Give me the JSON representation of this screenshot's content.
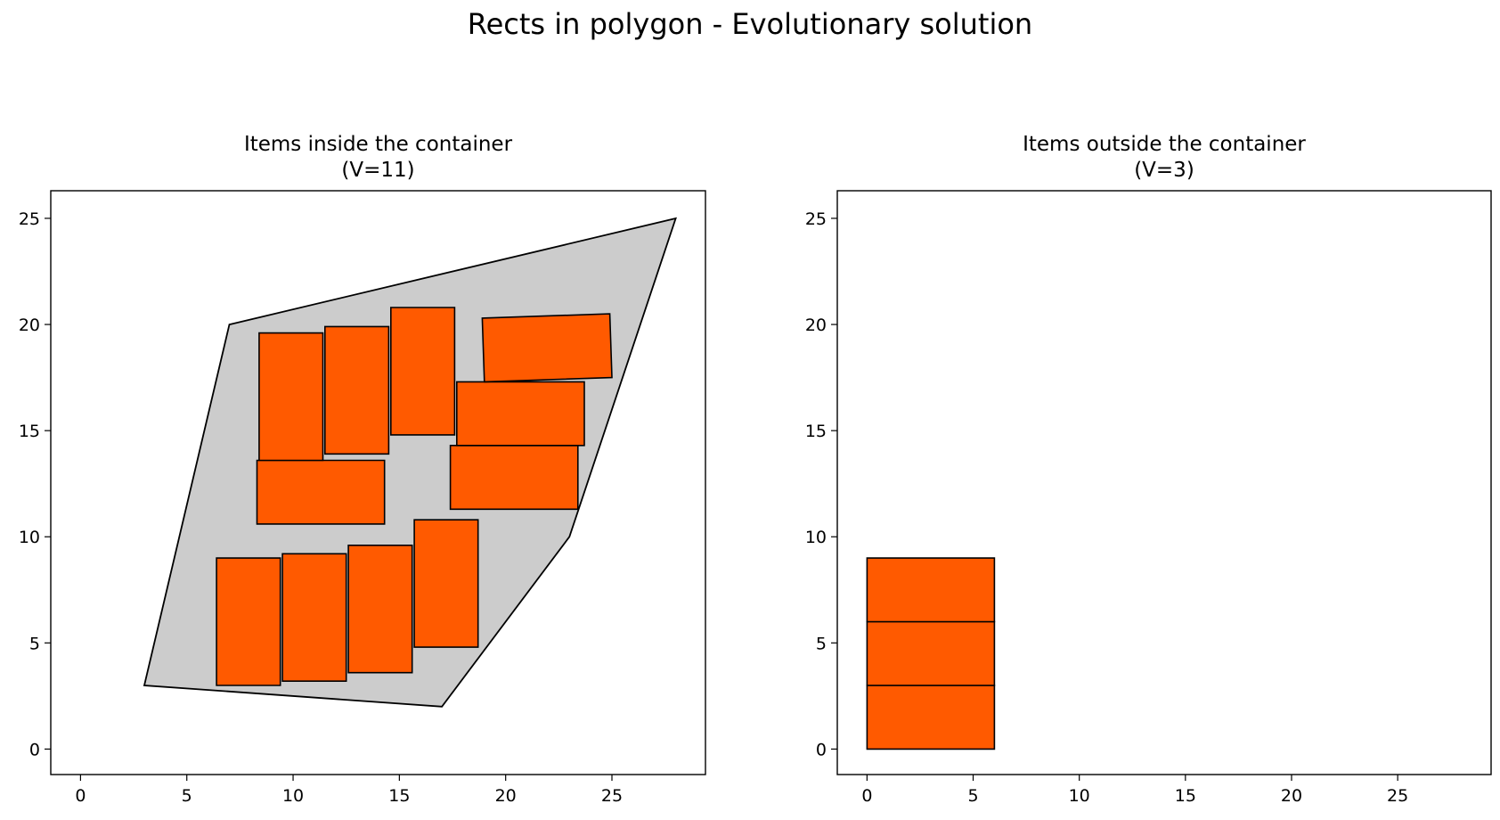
{
  "suptitle": "Rects in polygon - Evolutionary solution",
  "colors": {
    "item_fill": "#ff5a00",
    "item_edge": "#000000",
    "container_fill": "#cccccc",
    "container_edge": "#000000"
  },
  "chart_data": [
    {
      "type": "polygon-packing",
      "title_line1": "Items inside the container",
      "title_line2": "(V=11)",
      "xlim": [
        -1.4,
        29.4
      ],
      "ylim": [
        -1.2,
        26.3
      ],
      "xticks": [
        0,
        5,
        10,
        15,
        20,
        25
      ],
      "yticks": [
        0,
        5,
        10,
        15,
        20,
        25
      ],
      "container": [
        [
          3,
          3
        ],
        [
          7,
          20
        ],
        [
          28,
          25
        ],
        [
          23,
          10
        ],
        [
          17,
          2
        ]
      ],
      "items": [
        {
          "corners": [
            [
              6.4,
              3.0
            ],
            [
              9.4,
              3.0
            ],
            [
              9.4,
              9.0
            ],
            [
              6.4,
              9.0
            ]
          ]
        },
        {
          "corners": [
            [
              9.5,
              3.2
            ],
            [
              12.5,
              3.2
            ],
            [
              12.5,
              9.2
            ],
            [
              9.5,
              9.2
            ]
          ]
        },
        {
          "corners": [
            [
              12.6,
              3.6
            ],
            [
              15.6,
              3.6
            ],
            [
              15.6,
              9.6
            ],
            [
              12.6,
              9.6
            ]
          ]
        },
        {
          "corners": [
            [
              15.7,
              4.8
            ],
            [
              18.7,
              4.8
            ],
            [
              18.7,
              10.8
            ],
            [
              15.7,
              10.8
            ]
          ]
        },
        {
          "corners": [
            [
              8.3,
              10.6
            ],
            [
              14.3,
              10.6
            ],
            [
              14.3,
              13.6
            ],
            [
              8.3,
              13.6
            ]
          ]
        },
        {
          "corners": [
            [
              8.4,
              13.6
            ],
            [
              11.4,
              13.6
            ],
            [
              11.4,
              19.6
            ],
            [
              8.4,
              19.6
            ]
          ]
        },
        {
          "corners": [
            [
              11.5,
              13.9
            ],
            [
              14.5,
              13.9
            ],
            [
              14.5,
              19.9
            ],
            [
              11.5,
              19.9
            ]
          ]
        },
        {
          "corners": [
            [
              14.6,
              14.8
            ],
            [
              17.6,
              14.8
            ],
            [
              17.6,
              20.8
            ],
            [
              14.6,
              20.8
            ]
          ]
        },
        {
          "corners": [
            [
              17.4,
              11.3
            ],
            [
              23.4,
              11.3
            ],
            [
              23.4,
              14.3
            ],
            [
              17.4,
              14.3
            ]
          ]
        },
        {
          "corners": [
            [
              17.7,
              14.3
            ],
            [
              23.7,
              14.3
            ],
            [
              23.7,
              17.3
            ],
            [
              17.7,
              17.3
            ]
          ]
        },
        {
          "corners": [
            [
              19.0,
              17.3
            ],
            [
              25.0,
              17.5
            ],
            [
              24.9,
              20.5
            ],
            [
              18.9,
              20.3
            ]
          ]
        }
      ]
    },
    {
      "type": "polygon-packing",
      "title_line1": "Items outside the container",
      "title_line2": "(V=3)",
      "xlim": [
        -1.4,
        29.4
      ],
      "ylim": [
        -1.2,
        26.3
      ],
      "xticks": [
        0,
        5,
        10,
        15,
        20,
        25
      ],
      "yticks": [
        0,
        5,
        10,
        15,
        20,
        25
      ],
      "container": [],
      "items": [
        {
          "corners": [
            [
              0,
              0
            ],
            [
              6,
              0
            ],
            [
              6,
              3
            ],
            [
              0,
              3
            ]
          ]
        },
        {
          "corners": [
            [
              0,
              3
            ],
            [
              6,
              3
            ],
            [
              6,
              6
            ],
            [
              0,
              6
            ]
          ]
        },
        {
          "corners": [
            [
              0,
              6
            ],
            [
              6,
              6
            ],
            [
              6,
              9
            ],
            [
              0,
              9
            ]
          ]
        }
      ]
    }
  ]
}
